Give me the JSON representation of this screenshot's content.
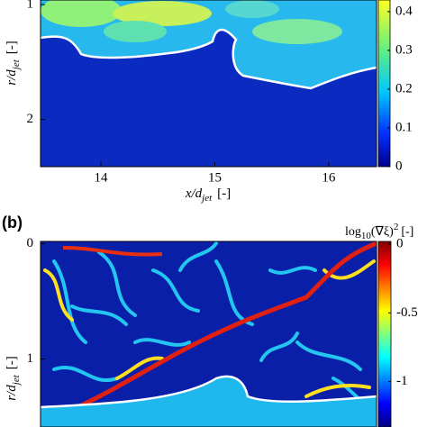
{
  "chart_data": [
    {
      "type": "heatmap",
      "ylabel": {
        "main": "r/d",
        "sub": "jet",
        "unit": "[-]"
      },
      "xlabel": {
        "main": "x/d",
        "sub": "jet",
        "unit": "[-]"
      },
      "xlim": [
        13.47,
        16.42
      ],
      "xticks": [
        14,
        15,
        16
      ],
      "ylim": [
        0.96,
        2.41
      ],
      "yticks": [
        1,
        2
      ],
      "colorbar": {
        "lim": [
          0,
          0.43
        ],
        "ticks": [
          0,
          0.1,
          0.2,
          0.3,
          0.4
        ]
      }
    },
    {
      "type": "heatmap",
      "panel_label": "(b)",
      "ylabel": {
        "main": "r/d",
        "sub": "jet",
        "unit": "[-]"
      },
      "ylim": [
        -0.02,
        1.59
      ],
      "yticks": [
        0,
        1
      ],
      "colorbar": {
        "title": {
          "pre": "log",
          "sub": "10",
          "mid": "(∇ξ)",
          "sup": "2",
          "unit": "[-]"
        },
        "lim": [
          -1.33,
          0.02
        ],
        "ticks": [
          0,
          -0.5,
          -1
        ]
      }
    }
  ]
}
